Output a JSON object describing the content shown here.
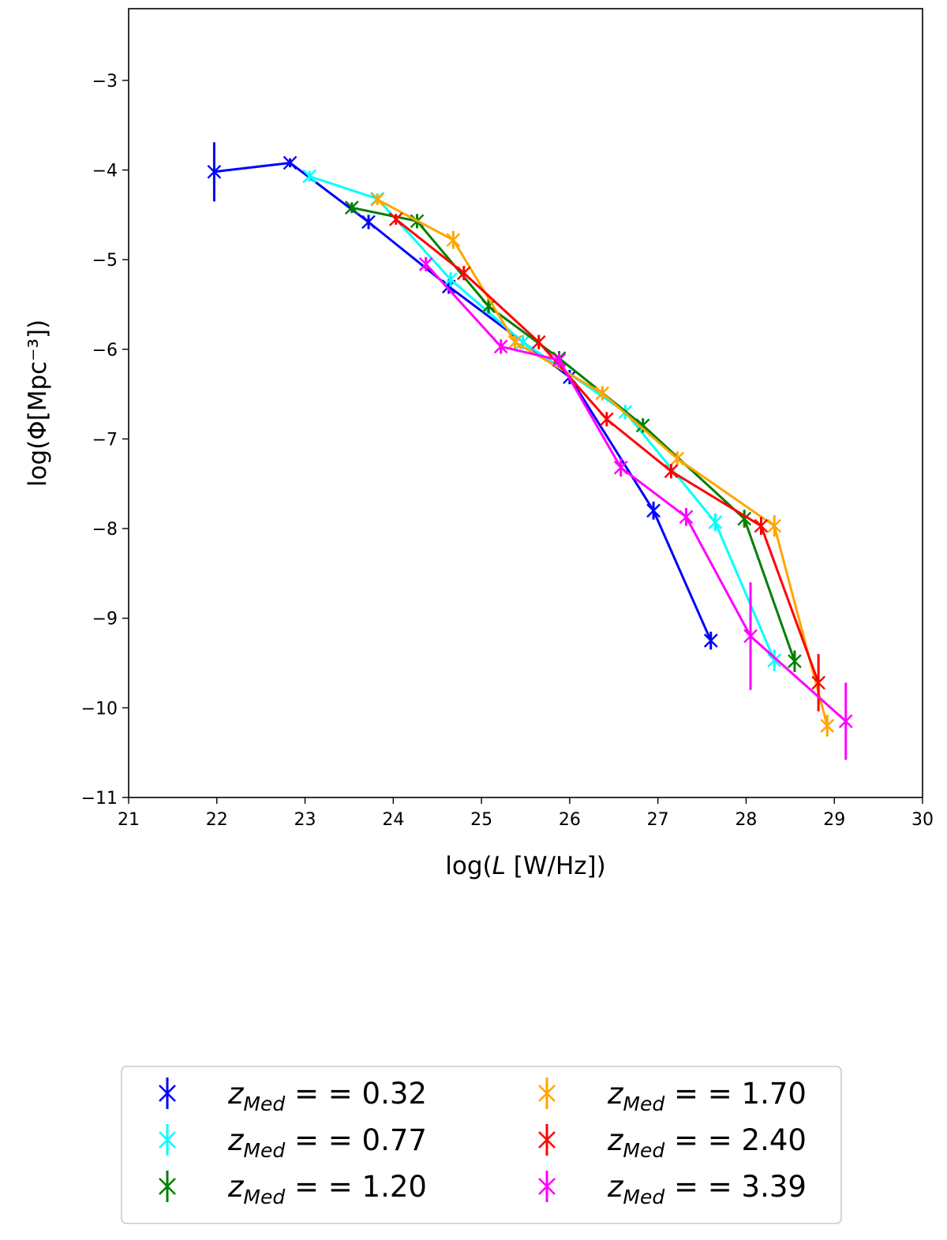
{
  "chart_data": {
    "type": "line",
    "xlabel_prefix": "log(",
    "xlabel_var": "L",
    "xlabel_suffix": " [W/Hz])",
    "ylabel": "log(Φ[Mpc⁻³])",
    "xlim": [
      21,
      30
    ],
    "ylim": [
      -11,
      -2.2
    ],
    "xticks": [
      21,
      22,
      23,
      24,
      25,
      26,
      27,
      28,
      29,
      30
    ],
    "yticks": [
      -11,
      -10,
      -9,
      -8,
      -7,
      -6,
      -5,
      -4,
      -3
    ],
    "xtick_labels": [
      "21",
      "22",
      "23",
      "24",
      "25",
      "26",
      "27",
      "28",
      "29",
      "30"
    ],
    "ytick_labels": [
      "−11",
      "−10",
      "−9",
      "−8",
      "−7",
      "−6",
      "−5",
      "−4",
      "−3"
    ],
    "legend_location": "below",
    "series": [
      {
        "name": "z_Med = = 0.32",
        "legend_var": "z",
        "legend_sub": "Med",
        "legend_rest": " = = 0.32",
        "color": "#0000ff",
        "x": [
          21.97,
          22.83,
          23.72,
          24.63,
          26.0,
          26.95,
          27.6
        ],
        "y": [
          -4.02,
          -3.92,
          -4.58,
          -5.3,
          -6.31,
          -7.8,
          -9.25
        ],
        "yerr": [
          0.33,
          0.05,
          0.08,
          0.08,
          0.08,
          0.1,
          0.1
        ]
      },
      {
        "name": "z_Med = = 0.77",
        "legend_var": "z",
        "legend_sub": "Med",
        "legend_rest": " = = 0.77",
        "color": "#00ffff",
        "x": [
          23.05,
          23.82,
          24.65,
          25.47,
          26.63,
          27.65,
          28.32
        ],
        "y": [
          -4.07,
          -4.32,
          -5.22,
          -5.92,
          -6.7,
          -7.93,
          -9.47
        ],
        "yerr": [
          0.06,
          0.06,
          0.08,
          0.08,
          0.08,
          0.1,
          0.12
        ]
      },
      {
        "name": "z_Med = = 1.20",
        "legend_var": "z",
        "legend_sub": "Med",
        "legend_rest": " = = 1.20",
        "color": "#008000",
        "x": [
          23.53,
          24.27,
          25.08,
          25.88,
          26.83,
          27.98,
          28.55
        ],
        "y": [
          -4.42,
          -4.57,
          -5.52,
          -6.1,
          -6.85,
          -7.89,
          -9.48
        ],
        "yerr": [
          0.06,
          0.08,
          0.08,
          0.08,
          0.08,
          0.1,
          0.12
        ]
      },
      {
        "name": "z_Med = = 1.70",
        "legend_var": "z",
        "legend_sub": "Med",
        "legend_rest": " = = 1.70",
        "color": "#ffa500",
        "x": [
          23.82,
          24.68,
          25.38,
          26.37,
          27.22,
          28.32,
          28.92
        ],
        "y": [
          -4.33,
          -4.78,
          -5.92,
          -6.49,
          -7.22,
          -7.97,
          -10.2
        ],
        "yerr": [
          0.06,
          0.1,
          0.08,
          0.08,
          0.08,
          0.12,
          0.12
        ]
      },
      {
        "name": "z_Med = = 2.40",
        "legend_var": "z",
        "legend_sub": "Med",
        "legend_rest": " = = 2.40",
        "color": "#ff0000",
        "x": [
          24.03,
          24.8,
          25.65,
          26.42,
          27.15,
          28.17,
          28.82
        ],
        "y": [
          -4.55,
          -5.15,
          -5.92,
          -6.78,
          -7.36,
          -7.97,
          -9.72
        ],
        "yerr": [
          0.06,
          0.08,
          0.08,
          0.08,
          0.08,
          0.1,
          0.32
        ]
      },
      {
        "name": "z_Med = = 3.39",
        "legend_var": "z",
        "legend_sub": "Med",
        "legend_rest": " = = 3.39",
        "color": "#ff00ff",
        "x": [
          24.37,
          25.22,
          25.88,
          26.58,
          27.32,
          28.05,
          29.13
        ],
        "y": [
          -5.05,
          -5.97,
          -6.12,
          -7.32,
          -7.87,
          -9.2,
          -10.15
        ],
        "yerr": [
          0.08,
          0.08,
          0.08,
          0.1,
          0.1,
          0.6,
          0.43
        ]
      }
    ]
  }
}
